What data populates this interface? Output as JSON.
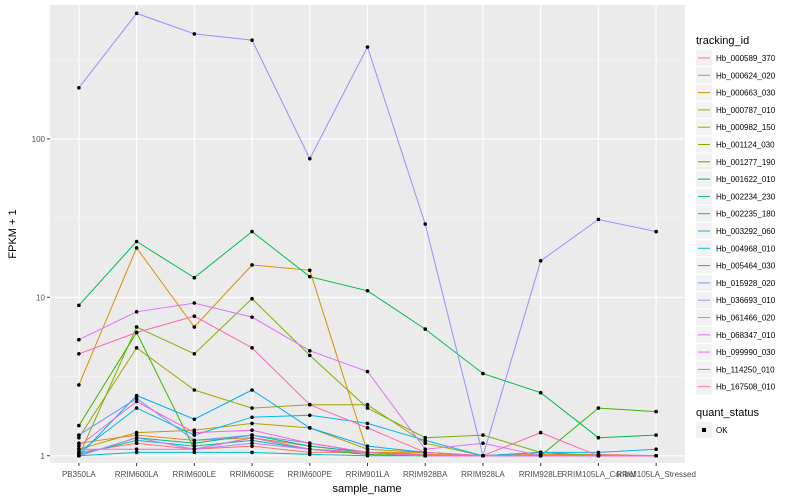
{
  "chart_data": {
    "type": "line",
    "xlabel": "sample_name",
    "ylabel": "FPKM + 1",
    "y_scale": "log10",
    "ylim": [
      0.9,
      700
    ],
    "y_ticks": [
      1,
      10,
      100
    ],
    "y_tick_labels": [
      "1",
      "10",
      "100"
    ],
    "categories": [
      "PB350LA",
      "RRIM600LA",
      "RRIM600LE",
      "RRIM600SE",
      "RRIM600PE",
      "RRIM901LA",
      "RRIM928BA",
      "RRIM928LA",
      "RRIM928LE",
      "RRIM105LA_Control",
      "RRIM105LA_Stressed"
    ],
    "legend": {
      "title": "tracking_id",
      "position": "right"
    },
    "legend2": {
      "title": "quant_status",
      "items": [
        {
          "label": "OK",
          "color": "#000000"
        }
      ]
    },
    "series": [
      {
        "name": "Hb_000589_370",
        "color": "#F8766D",
        "values": [
          1.05,
          1.2,
          1.1,
          1.15,
          1.05,
          1.05,
          1.02,
          1.0,
          1.02,
          1.02,
          1.0
        ]
      },
      {
        "name": "Hb_000624_020",
        "color": "#EA8331",
        "values": [
          1.2,
          1.35,
          1.25,
          1.3,
          1.15,
          1.05,
          1.02,
          1.0,
          1.02,
          1.0,
          1.0
        ]
      },
      {
        "name": "Hb_000663_030",
        "color": "#D89000",
        "values": [
          2.8,
          20.5,
          6.5,
          16.0,
          14.8,
          1.05,
          1.05,
          1.0,
          1.05,
          1.0,
          1.0
        ]
      },
      {
        "name": "Hb_000787_010",
        "color": "#C09B00",
        "values": [
          1.1,
          1.4,
          1.45,
          1.6,
          1.5,
          1.1,
          1.05,
          1.0,
          1.0,
          1.0,
          1.0
        ]
      },
      {
        "name": "Hb_000982_150",
        "color": "#A3A500",
        "values": [
          1.3,
          4.8,
          2.6,
          2.0,
          2.1,
          2.1,
          1.2,
          1.0,
          1.05,
          1.0,
          1.0
        ]
      },
      {
        "name": "Hb_001124_030",
        "color": "#7CAE00",
        "values": [
          1.0,
          6.5,
          4.4,
          9.8,
          4.3,
          2.0,
          1.3,
          1.35,
          1.05,
          1.0,
          1.0
        ]
      },
      {
        "name": "Hb_001277_190",
        "color": "#39B600",
        "values": [
          1.55,
          6.0,
          1.1,
          1.3,
          1.1,
          1.02,
          1.0,
          1.0,
          1.0,
          2.0,
          1.9
        ]
      },
      {
        "name": "Hb_001622_010",
        "color": "#00BB4E",
        "values": [
          8.9,
          22.5,
          13.3,
          26.0,
          13.5,
          11.0,
          6.3,
          3.3,
          2.5,
          1.3,
          1.35
        ]
      },
      {
        "name": "Hb_002234_230",
        "color": "#00BF7D",
        "values": [
          1.0,
          1.3,
          1.2,
          1.35,
          1.15,
          1.05,
          1.0,
          1.0,
          1.0,
          1.0,
          1.0
        ]
      },
      {
        "name": "Hb_002235_180",
        "color": "#00C1A3",
        "values": [
          1.02,
          1.25,
          1.15,
          1.25,
          1.1,
          1.05,
          1.0,
          1.0,
          1.0,
          1.0,
          1.0
        ]
      },
      {
        "name": "Hb_003292_060",
        "color": "#00BFC4",
        "values": [
          1.0,
          1.05,
          1.05,
          1.05,
          1.02,
          1.0,
          1.0,
          1.0,
          1.0,
          1.0,
          1.0
        ]
      },
      {
        "name": "Hb_004968_010",
        "color": "#00B8E5",
        "values": [
          1.05,
          2.0,
          1.35,
          1.75,
          1.8,
          1.6,
          1.25,
          1.0,
          1.05,
          1.05,
          1.1
        ]
      },
      {
        "name": "Hb_005464_030",
        "color": "#00ACFC",
        "values": [
          1.0,
          2.4,
          1.7,
          2.6,
          1.5,
          1.15,
          1.05,
          1.0,
          1.0,
          1.0,
          1.0
        ]
      },
      {
        "name": "Hb_015928_020",
        "color": "#619CFF",
        "values": [
          1.35,
          2.3,
          1.25,
          1.35,
          1.2,
          1.05,
          1.0,
          1.0,
          1.0,
          1.0,
          1.0
        ]
      },
      {
        "name": "Hb_036693_010",
        "color": "#9590FF",
        "values": [
          210,
          620,
          460,
          420,
          75,
          380,
          29,
          1.0,
          17,
          31,
          26
        ]
      },
      {
        "name": "Hb_061466_020",
        "color": "#B983FF",
        "values": [
          1.0,
          1.3,
          1.1,
          1.2,
          1.1,
          1.05,
          1.0,
          1.0,
          1.0,
          1.0,
          1.0
        ]
      },
      {
        "name": "Hb_068347_010",
        "color": "#DB72FB",
        "values": [
          5.4,
          8.1,
          9.2,
          7.5,
          4.6,
          3.4,
          1.1,
          1.2,
          1.0,
          1.0,
          1.0
        ]
      },
      {
        "name": "Hb_099990_030",
        "color": "#F066EA",
        "values": [
          1.1,
          1.1,
          1.1,
          1.3,
          1.1,
          1.05,
          1.0,
          1.0,
          1.0,
          1.0,
          1.0
        ]
      },
      {
        "name": "Hb_114250_010",
        "color": "#FC61D5",
        "values": [
          1.15,
          2.2,
          1.4,
          1.45,
          1.2,
          1.05,
          1.0,
          1.0,
          1.0,
          1.0,
          1.0
        ]
      },
      {
        "name": "Hb_167508_010",
        "color": "#FF65AC",
        "values": [
          4.4,
          6.0,
          7.6,
          4.8,
          2.1,
          1.5,
          1.05,
          1.0,
          1.4,
          1.0,
          1.0
        ]
      }
    ]
  }
}
